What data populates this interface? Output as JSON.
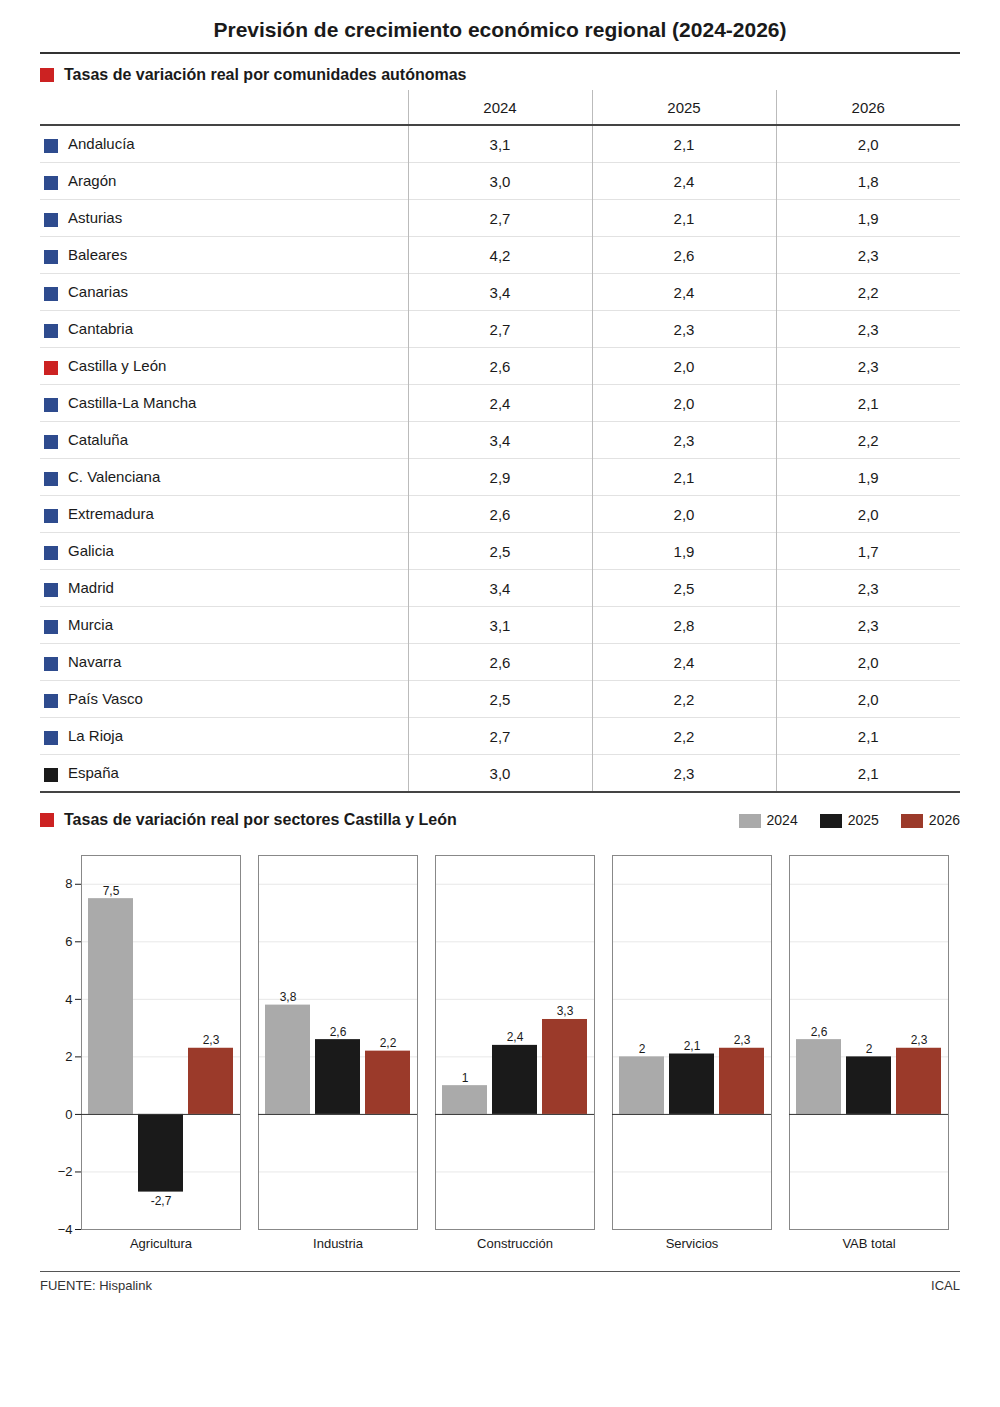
{
  "chart_data": [
    {
      "type": "table",
      "title": "Previsión de crecimiento económico regional (2024-2026)",
      "subtitle": "Tasas de variación real por comunidades autónomas",
      "categories": [
        "Andalucía",
        "Aragón",
        "Asturias",
        "Baleares",
        "Canarias",
        "Cantabria",
        "Castilla y León",
        "Castilla-La Mancha",
        "Cataluña",
        "C. Valenciana",
        "Extremadura",
        "Galicia",
        "Madrid",
        "Murcia",
        "Navarra",
        "País Vasco",
        "La Rioja",
        "España"
      ],
      "colors": [
        "#2E4B8E",
        "#2E4B8E",
        "#2E4B8E",
        "#2E4B8E",
        "#2E4B8E",
        "#2E4B8E",
        "#CC2222",
        "#2E4B8E",
        "#2E4B8E",
        "#2E4B8E",
        "#2E4B8E",
        "#2E4B8E",
        "#2E4B8E",
        "#2E4B8E",
        "#2E4B8E",
        "#2E4B8E",
        "#2E4B8E",
        "#1A1A1A"
      ],
      "series": [
        {
          "name": "2024",
          "values": [
            3.1,
            3.0,
            2.7,
            4.2,
            3.4,
            2.7,
            2.6,
            2.4,
            3.4,
            2.9,
            2.6,
            2.5,
            3.4,
            3.1,
            2.6,
            2.5,
            2.7,
            3.0
          ],
          "value_labels": [
            "3,1",
            "3,0",
            "2,7",
            "4,2",
            "3,4",
            "2,7",
            "2,6",
            "2,4",
            "3,4",
            "2,9",
            "2,6",
            "2,5",
            "3,4",
            "3,1",
            "2,6",
            "2,5",
            "2,7",
            "3,0"
          ]
        },
        {
          "name": "2025",
          "values": [
            2.1,
            2.4,
            2.1,
            2.6,
            2.4,
            2.3,
            2.0,
            2.0,
            2.3,
            2.1,
            2.0,
            1.9,
            2.5,
            2.8,
            2.4,
            2.2,
            2.2,
            2.3
          ],
          "value_labels": [
            "2,1",
            "2,4",
            "2,1",
            "2,6",
            "2,4",
            "2,3",
            "2,0",
            "2,0",
            "2,3",
            "2,1",
            "2,0",
            "1,9",
            "2,5",
            "2,8",
            "2,4",
            "2,2",
            "2,2",
            "2,3"
          ]
        },
        {
          "name": "2026",
          "values": [
            2.0,
            1.8,
            1.9,
            2.3,
            2.2,
            2.3,
            2.3,
            2.1,
            2.2,
            1.9,
            2.0,
            1.7,
            2.3,
            2.3,
            2.0,
            2.0,
            2.1,
            2.1
          ],
          "value_labels": [
            "2,0",
            "1,8",
            "1,9",
            "2,3",
            "2,2",
            "2,3",
            "2,3",
            "2,1",
            "2,2",
            "1,9",
            "2,0",
            "1,7",
            "2,3",
            "2,3",
            "2,0",
            "2,0",
            "2,1",
            "2,1"
          ]
        }
      ],
      "data_labels": true
    },
    {
      "type": "bar",
      "title": "Tasas de variación real por sectores Castilla y León",
      "categories": [
        "Agricultura",
        "Industria",
        "Construcción",
        "Servicios",
        "VAB total"
      ],
      "series": [
        {
          "name": "2024",
          "color": "#AAAAAA",
          "values": [
            7.5,
            3.8,
            1.0,
            2.0,
            2.6
          ],
          "value_labels": [
            "7,5",
            "3,8",
            "1",
            "2",
            "2,6"
          ]
        },
        {
          "name": "2025",
          "color": "#1A1A1A",
          "values": [
            -2.7,
            2.6,
            2.4,
            2.1,
            2.0
          ],
          "value_labels": [
            "-2,7",
            "2,6",
            "2,4",
            "2,1",
            "2"
          ]
        },
        {
          "name": "2026",
          "color": "#9B3A2A",
          "values": [
            2.3,
            2.2,
            3.3,
            2.3,
            2.3
          ],
          "value_labels": [
            "2,3",
            "2,2",
            "3,3",
            "2,3",
            "2,3"
          ]
        }
      ],
      "ylim": [
        -4,
        9
      ],
      "yticks": [
        -4,
        -2,
        0,
        2,
        4,
        6,
        8
      ],
      "grid": true,
      "legend": "top-right",
      "data_labels": true,
      "annotations": [
        "FUENTE: Hispalink",
        "ICAL"
      ]
    }
  ]
}
